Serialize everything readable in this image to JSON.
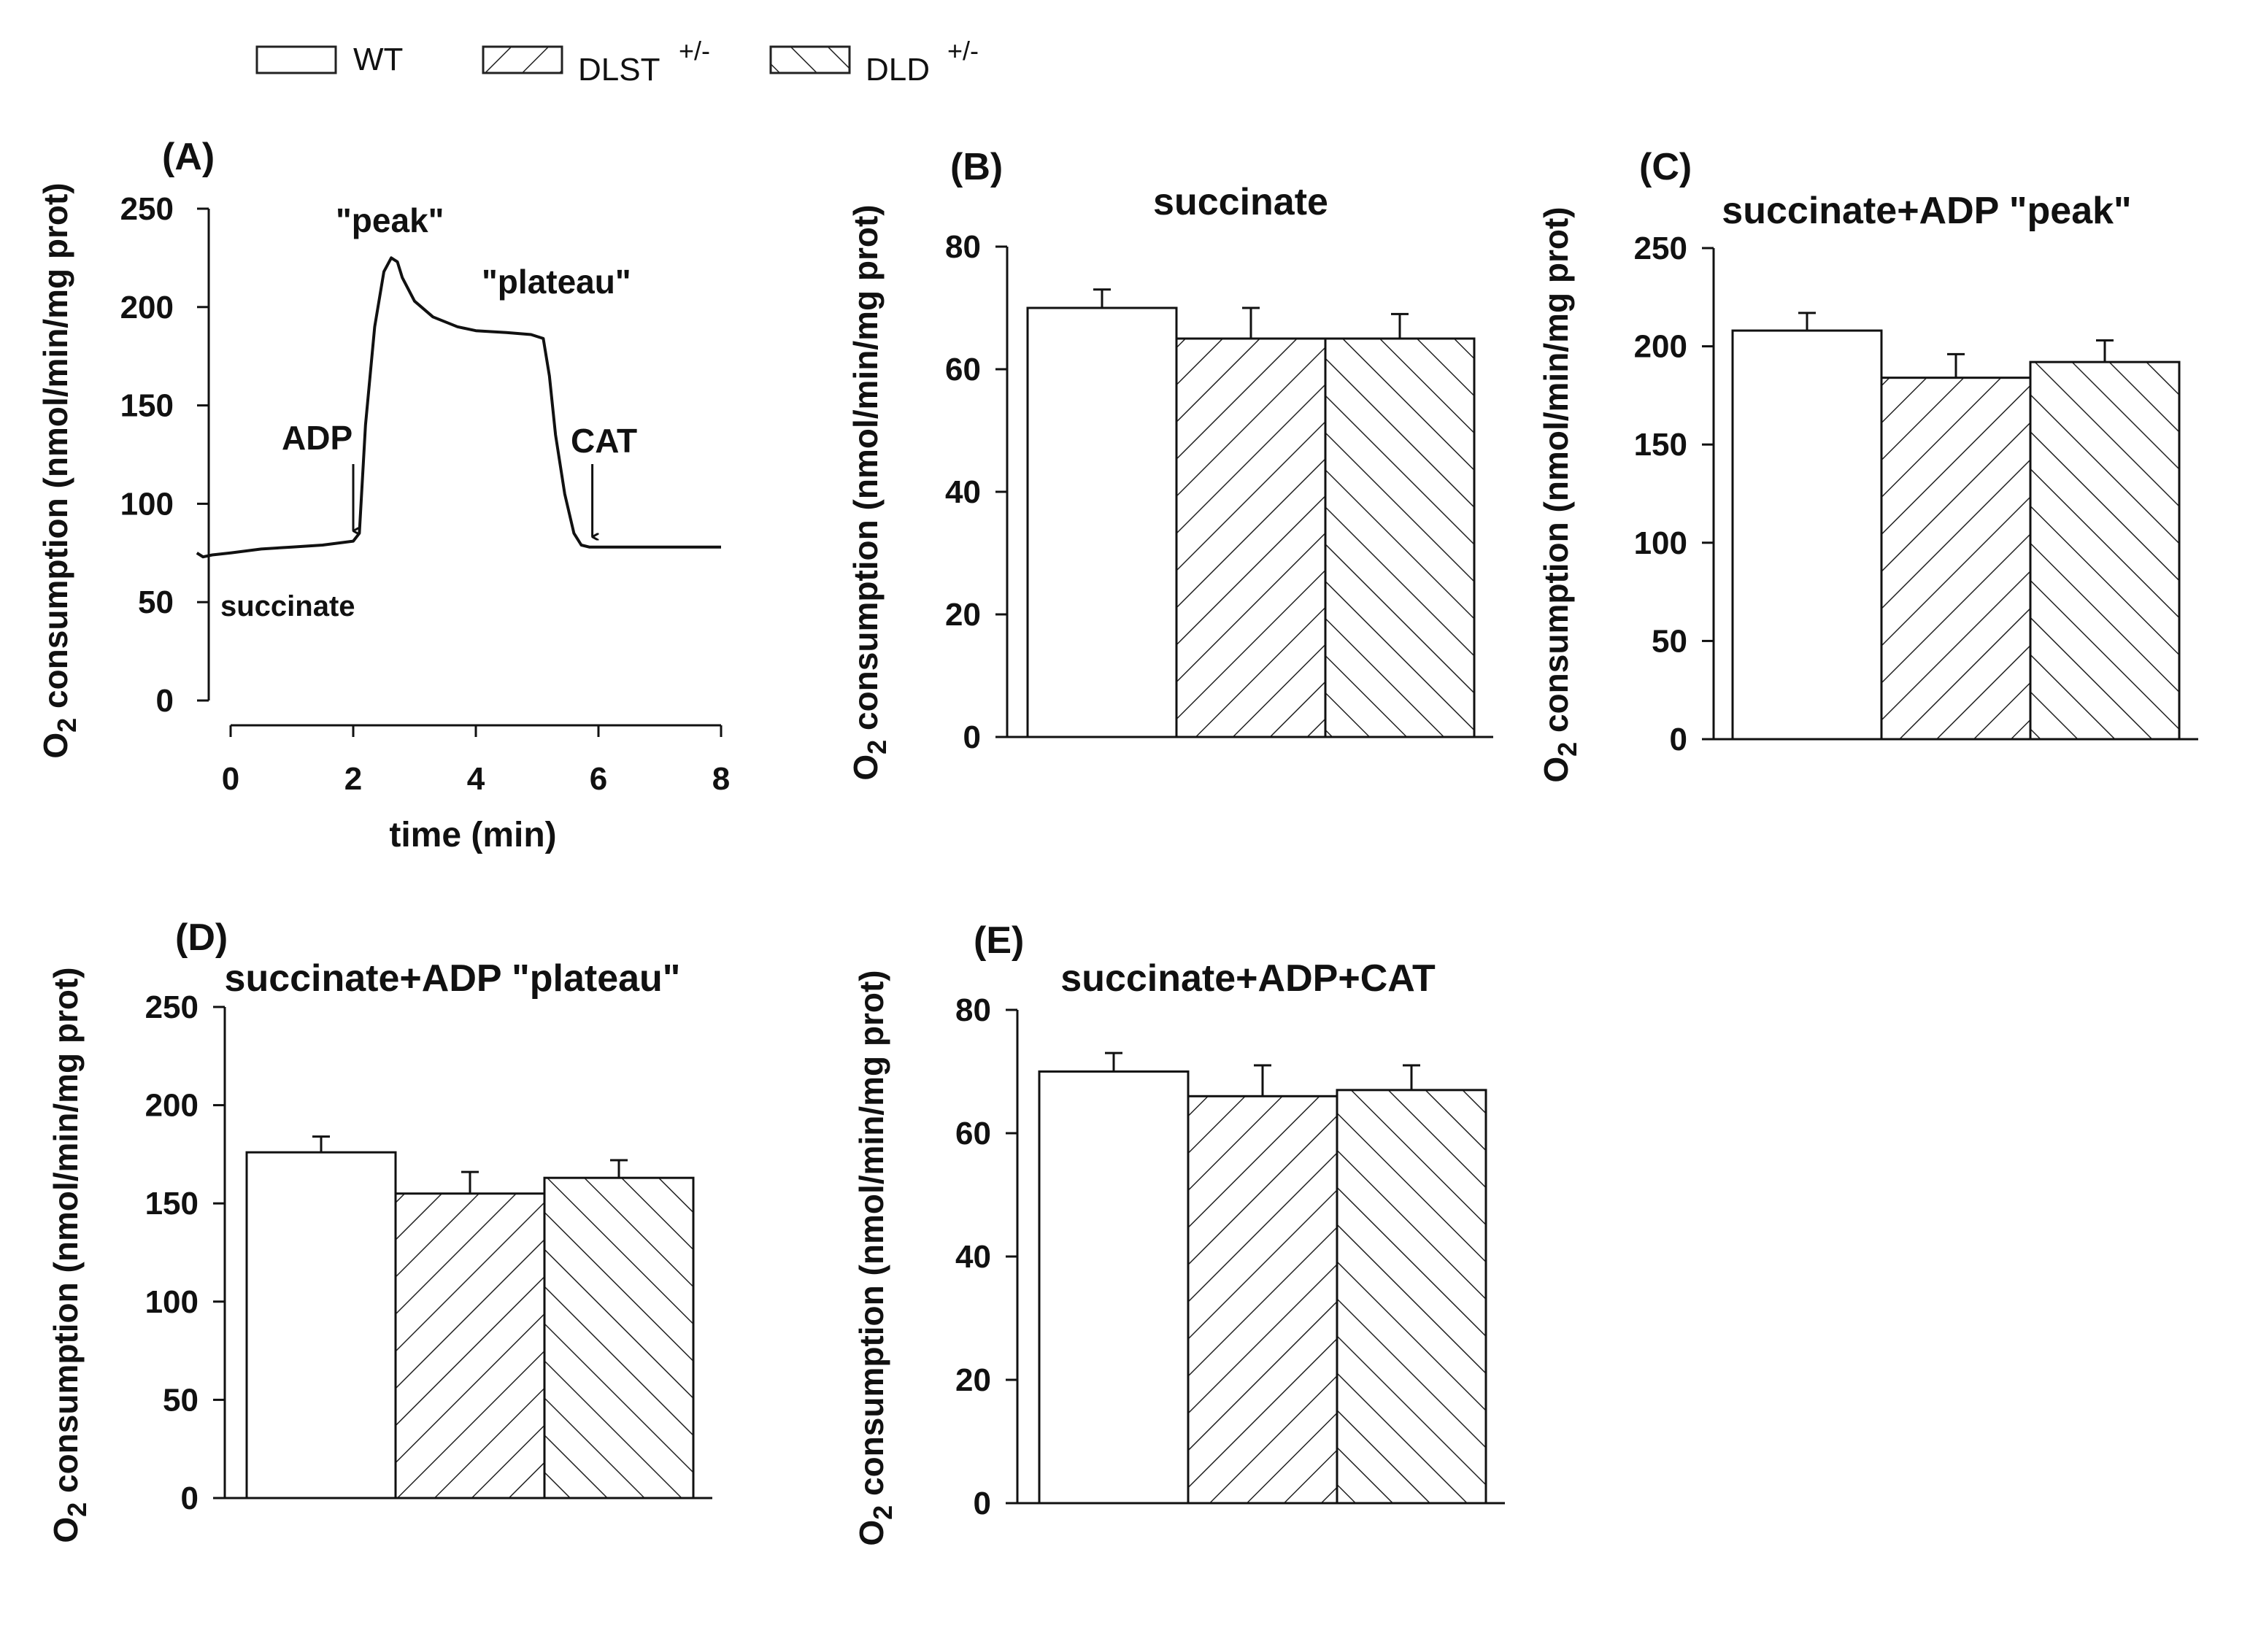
{
  "legend": {
    "items": [
      {
        "key": "wt",
        "label": "WT",
        "sup": "",
        "pattern": "none"
      },
      {
        "key": "dlst",
        "label": "DLST",
        "sup": "+/-",
        "pattern": "forward"
      },
      {
        "key": "dld",
        "label": "DLD",
        "sup": "+/-",
        "pattern": "backward"
      }
    ]
  },
  "y_axis_label": {
    "prefix": "O",
    "subscript": "2",
    "rest": " consumption (nmol/min/mg prot)"
  },
  "trace_panel": {
    "letter": "(A)",
    "xlabel": "time (min)",
    "annotations": {
      "peak": "\"peak\"",
      "plateau": "\"plateau\"",
      "adp": "ADP",
      "cat": "CAT",
      "succinate": "succinate"
    }
  },
  "chart_data": [
    {
      "id": "A",
      "type": "line",
      "title": "",
      "xlabel": "time (min)",
      "ylabel": "O2 consumption (nmol/min/mg prot)",
      "xlim": [
        0,
        8
      ],
      "ylim": [
        0,
        250
      ],
      "xticks": [
        0,
        2,
        4,
        6,
        8
      ],
      "yticks": [
        0,
        50,
        100,
        150,
        200,
        250
      ],
      "series": [
        {
          "name": "O2 consumption trace",
          "x": [
            -0.55,
            -0.45,
            -0.3,
            0,
            0.5,
            1,
            1.5,
            2,
            2.1,
            2.2,
            2.35,
            2.5,
            2.62,
            2.72,
            2.8,
            3,
            3.3,
            3.7,
            4,
            4.5,
            4.9,
            5.1,
            5.2,
            5.3,
            5.45,
            5.6,
            5.72,
            5.85,
            6,
            7,
            8
          ],
          "y": [
            75,
            73,
            74,
            75,
            77,
            78,
            79,
            81,
            85,
            140,
            190,
            218,
            225,
            223,
            215,
            203,
            195,
            190,
            188,
            187,
            186,
            184,
            165,
            135,
            105,
            85,
            79,
            78,
            78,
            78,
            78
          ]
        }
      ],
      "arrows": [
        {
          "label": "ADP",
          "x": 2
        },
        {
          "label": "CAT",
          "x": 5.9
        }
      ]
    },
    {
      "id": "B",
      "type": "bar",
      "title": "succinate",
      "ylim": [
        0,
        80
      ],
      "yticks": [
        0,
        20,
        40,
        60,
        80
      ],
      "categories": [
        "WT",
        "DLST+/-",
        "DLD+/-"
      ],
      "values": [
        70,
        65,
        65
      ],
      "errors": [
        3,
        5,
        4
      ]
    },
    {
      "id": "C",
      "type": "bar",
      "title": "succinate+ADP \"peak\"",
      "ylim": [
        0,
        250
      ],
      "yticks": [
        0,
        50,
        100,
        150,
        200,
        250
      ],
      "categories": [
        "WT",
        "DLST+/-",
        "DLD+/-"
      ],
      "values": [
        208,
        184,
        192
      ],
      "errors": [
        9,
        12,
        11
      ]
    },
    {
      "id": "D",
      "type": "bar",
      "title": "succinate+ADP \"plateau\"",
      "ylim": [
        0,
        250
      ],
      "yticks": [
        0,
        50,
        100,
        150,
        200,
        250
      ],
      "categories": [
        "WT",
        "DLST+/-",
        "DLD+/-"
      ],
      "values": [
        176,
        155,
        163
      ],
      "errors": [
        8,
        11,
        9
      ]
    },
    {
      "id": "E",
      "type": "bar",
      "title": "succinate+ADP+CAT",
      "ylim": [
        0,
        80
      ],
      "yticks": [
        0,
        20,
        40,
        60,
        80
      ],
      "categories": [
        "WT",
        "DLST+/-",
        "DLD+/-"
      ],
      "values": [
        70,
        66,
        67
      ],
      "errors": [
        3,
        5,
        4
      ]
    }
  ]
}
